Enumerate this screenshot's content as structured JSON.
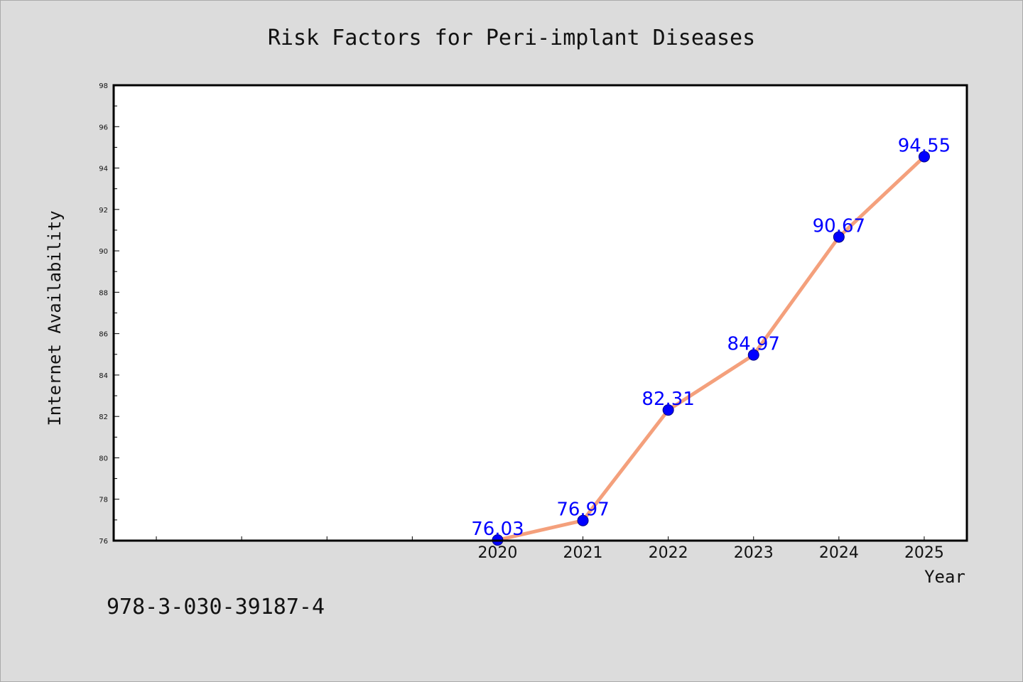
{
  "chart_data": {
    "type": "line",
    "title": "Risk Factors for Peri-implant Diseases",
    "xlabel": "Year",
    "ylabel": "Internet Availability",
    "x": [
      "2020",
      "2021",
      "2022",
      "2023",
      "2024",
      "2025"
    ],
    "series": [
      {
        "values": [
          76.03,
          76.97,
          82.31,
          84.97,
          90.67,
          94.55
        ],
        "labels": [
          "76.03",
          "76.97",
          "82.31",
          "84.97",
          "90.67",
          "94.55"
        ]
      }
    ],
    "ylim": [
      76,
      98
    ],
    "yticks": [
      "76",
      "78",
      "80",
      "82",
      "84",
      "86",
      "88",
      "90",
      "92",
      "94",
      "96",
      "98"
    ],
    "grid": false,
    "line_color": "#f4a07c",
    "marker_color": "#0000ff",
    "label_color": "#0000ff",
    "background_color": "#dcdcdc"
  },
  "footnote": "978-3-030-39187-4"
}
